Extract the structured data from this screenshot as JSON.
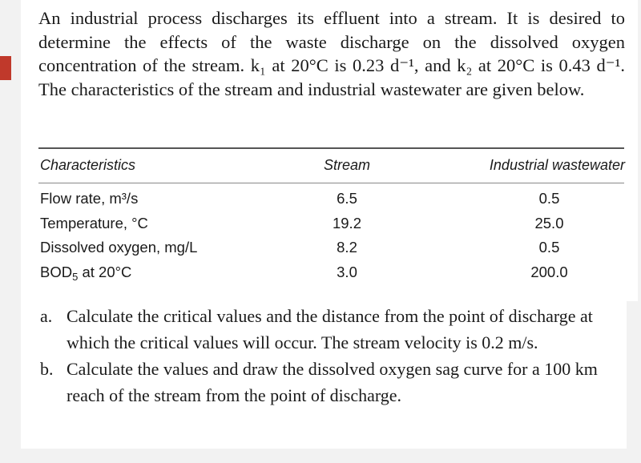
{
  "problem": {
    "intro": "An industrial process discharges its effluent into a stream. It is desired to determine the effects of the waste discharge on the dissolved oxygen concentration of the stream. k₁ at 20°C is 0.23 d⁻¹, and k₂ at 20°C is 0.43 d⁻¹. The characteristics of the stream and industrial wastewater are given below."
  },
  "table": {
    "headers": [
      "Characteristics",
      "Stream",
      "Industrial wastewater"
    ],
    "rows": [
      {
        "label": "Flow rate, m³/s",
        "stream": "6.5",
        "industrial": "0.5"
      },
      {
        "label": "Temperature, °C",
        "stream": "19.2",
        "industrial": "25.0"
      },
      {
        "label": "Dissolved oxygen, mg/L",
        "stream": "8.2",
        "industrial": "0.5"
      },
      {
        "label_main": "BOD",
        "label_sub": "5",
        "label_tail": " at 20°C",
        "stream": "3.0",
        "industrial": "200.0"
      }
    ]
  },
  "questions": [
    {
      "label": "a.",
      "text": "Calculate the critical values and the distance from the point of discharge at which the critical values will occur. The stream velocity is 0.2 m/s."
    },
    {
      "label": "b.",
      "text": "Calculate the values and draw the dissolved oxygen sag curve for a 100 km reach of the stream from the point of discharge."
    }
  ],
  "colors": {
    "accent": "#c0392b",
    "background": "#f2f2f2",
    "page": "#ffffff"
  }
}
